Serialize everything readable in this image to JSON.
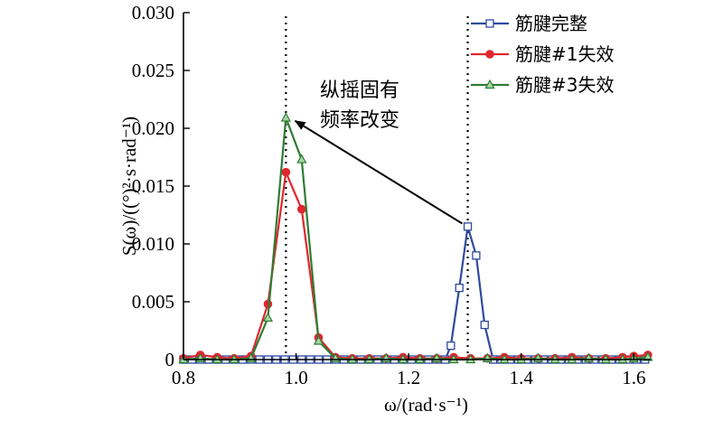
{
  "chart_data": {
    "type": "line",
    "title": "",
    "xlabel": "ω/(rad·s⁻¹)",
    "ylabel": "S(ω)/((°)²·s·rad⁻¹)",
    "xlim": [
      0.8,
      1.63
    ],
    "ylim": [
      0,
      0.03
    ],
    "xticks": [
      0.8,
      1.0,
      1.2,
      1.4,
      1.6
    ],
    "xtick_labels": [
      "0.8",
      "1.0",
      "1.2",
      "1.4",
      "1.6"
    ],
    "yticks": [
      0,
      0.005,
      0.01,
      0.015,
      0.02,
      0.025,
      0.03
    ],
    "ytick_labels": [
      "0",
      "0.005",
      "0.010",
      "0.015",
      "0.020",
      "0.025",
      "0.030"
    ],
    "grid": false,
    "legend_position": "top-right",
    "vlines": [
      0.982,
      1.305
    ],
    "series": [
      {
        "name": "筋腱完整",
        "color": "#2e4a9e",
        "marker": "square-open",
        "x": [
          0.8,
          0.815,
          0.83,
          0.845,
          0.86,
          0.875,
          0.89,
          0.905,
          0.92,
          0.935,
          0.95,
          0.965,
          0.98,
          0.995,
          1.01,
          1.025,
          1.04,
          1.055,
          1.07,
          1.085,
          1.1,
          1.115,
          1.13,
          1.145,
          1.16,
          1.175,
          1.19,
          1.205,
          1.22,
          1.235,
          1.25,
          1.265,
          1.275,
          1.29,
          1.305,
          1.32,
          1.335,
          1.35,
          1.365,
          1.38,
          1.395,
          1.41,
          1.425,
          1.44,
          1.455,
          1.47,
          1.485,
          1.5,
          1.515,
          1.53,
          1.545,
          1.56,
          1.575,
          1.59,
          1.605,
          1.62
        ],
        "y": [
          0,
          0,
          0,
          0,
          0,
          0,
          0,
          0,
          0,
          0,
          0,
          0,
          0,
          0,
          0,
          0,
          0,
          0,
          0,
          0,
          0,
          0,
          0,
          0,
          0,
          0,
          0,
          0,
          0,
          0,
          0,
          0,
          0.0012,
          0.0062,
          0.0115,
          0.009,
          0.003,
          0,
          0,
          0,
          0,
          0,
          0,
          0,
          0,
          0,
          0,
          0,
          0,
          0,
          0,
          0,
          0,
          0,
          0,
          0
        ]
      },
      {
        "name": "筋腱#1失效",
        "color": "#e0262e",
        "marker": "circle-filled",
        "x": [
          0.8,
          0.83,
          0.86,
          0.89,
          0.92,
          0.95,
          0.982,
          1.01,
          1.04,
          1.07,
          1.1,
          1.13,
          1.16,
          1.19,
          1.22,
          1.25,
          1.28,
          1.31,
          1.34,
          1.37,
          1.4,
          1.43,
          1.46,
          1.49,
          1.52,
          1.55,
          1.58,
          1.6,
          1.625
        ],
        "y": [
          0.0001,
          0.0004,
          0.0002,
          0.0001,
          0.0003,
          0.0048,
          0.0162,
          0.013,
          0.0019,
          0.0002,
          0.0001,
          0.0001,
          0.0001,
          0.0002,
          0.0001,
          0.0001,
          0.0002,
          0.0001,
          0.0001,
          0.0002,
          0.0001,
          0.0001,
          0.0001,
          0.0002,
          0.0001,
          0.0001,
          0.0002,
          0.0003,
          0.0004
        ]
      },
      {
        "name": "筋腱#3失效",
        "color": "#2e7d32",
        "marker": "triangle-open",
        "x": [
          0.8,
          0.83,
          0.86,
          0.89,
          0.92,
          0.95,
          0.982,
          1.01,
          1.04,
          1.07,
          1.1,
          1.13,
          1.16,
          1.19,
          1.22,
          1.25,
          1.28,
          1.31,
          1.34,
          1.37,
          1.4,
          1.43,
          1.46,
          1.49,
          1.52,
          1.55,
          1.58,
          1.6,
          1.625
        ],
        "y": [
          0,
          0.0001,
          0,
          0,
          0.0001,
          0.0036,
          0.0209,
          0.0173,
          0.0016,
          0.0001,
          0,
          0,
          0.0001,
          0,
          0,
          0.0001,
          0,
          0,
          0.0001,
          0,
          0,
          0.0001,
          0,
          0,
          0.0001,
          0,
          0,
          0.0001,
          0.0002
        ]
      }
    ],
    "annotation": {
      "lines": [
        "纵摇固有",
        "频率改变"
      ],
      "arrow_from": [
        1.305,
        0.0116
      ],
      "arrow_to": [
        0.992,
        0.0208
      ]
    }
  }
}
